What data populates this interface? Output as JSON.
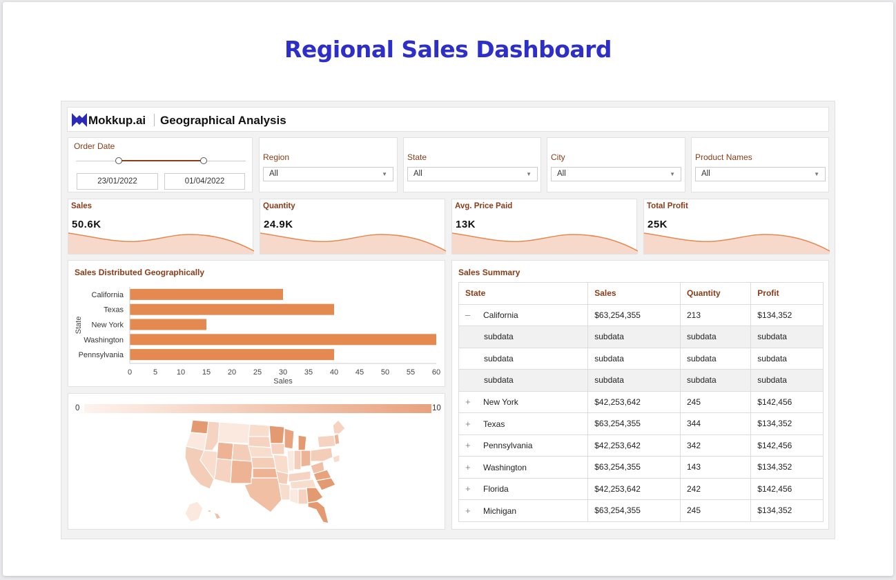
{
  "page_title": "Regional Sales Dashboard",
  "header": {
    "brand": "Mokkup.ai",
    "title": "Geographical Analysis"
  },
  "filters": {
    "order_date": {
      "label": "Order Date",
      "start": "23/01/2022",
      "end": "01/04/2022"
    },
    "region": {
      "label": "Region",
      "value": "All"
    },
    "state": {
      "label": "State",
      "value": "All"
    },
    "city": {
      "label": "City",
      "value": "All"
    },
    "product": {
      "label": "Product Names",
      "value": "All"
    }
  },
  "kpis": [
    {
      "label": "Sales",
      "value": "50.6K"
    },
    {
      "label": "Quantity",
      "value": "24.9K"
    },
    {
      "label": "Avg. Price Paid",
      "value": "13K"
    },
    {
      "label": "Total Profit",
      "value": "25K"
    }
  ],
  "bar_chart": {
    "title": "Sales Distributed Geographically",
    "xlabel": "Sales",
    "ylabel": "State",
    "color": "#e4894f",
    "xlim": [
      0,
      60
    ],
    "xticks": [
      "0",
      "5",
      "10",
      "15",
      "20",
      "25",
      "30",
      "35",
      "40",
      "45",
      "50",
      "55",
      "60"
    ]
  },
  "chart_data": {
    "type": "bar",
    "orientation": "horizontal",
    "categories": [
      "California",
      "Texas",
      "New York",
      "Washington",
      "Pennsylvania"
    ],
    "values": [
      30,
      40,
      15,
      60,
      40
    ],
    "title": "Sales Distributed Geographically",
    "xlabel": "Sales",
    "ylabel": "State",
    "xlim": [
      0,
      60
    ],
    "grid": false
  },
  "map": {
    "scale_min": "0",
    "scale_max": "10"
  },
  "summary": {
    "title": "Sales Summary",
    "columns": [
      "State",
      "Sales",
      "Quantity",
      "Profit"
    ],
    "rows": [
      {
        "toggle": "–",
        "state": "California",
        "sales": "$63,254,355",
        "qty": "213",
        "profit": "$134,352"
      },
      {
        "sub": true,
        "state": "subdata",
        "sales": "subdata",
        "qty": "subdata",
        "profit": "subdata"
      },
      {
        "sub": true,
        "state": "subdata",
        "sales": "subdata",
        "qty": "subdata",
        "profit": "subdata"
      },
      {
        "sub": true,
        "state": "subdata",
        "sales": "subdata",
        "qty": "subdata",
        "profit": "subdata"
      },
      {
        "toggle": "+",
        "state": "New York",
        "sales": "$42,253,642",
        "qty": "245",
        "profit": "$142,456"
      },
      {
        "toggle": "+",
        "state": "Texas",
        "sales": "$63,254,355",
        "qty": "344",
        "profit": "$134,352"
      },
      {
        "toggle": "+",
        "state": "Pennsylvania",
        "sales": "$42,253,642",
        "qty": "342",
        "profit": "$142,456"
      },
      {
        "toggle": "+",
        "state": "Washington",
        "sales": "$63,254,355",
        "qty": "143",
        "profit": "$134,352"
      },
      {
        "toggle": "+",
        "state": "Florida",
        "sales": "$42,253,642",
        "qty": "242",
        "profit": "$142,456"
      },
      {
        "toggle": "+",
        "state": "Michigan",
        "sales": "$63,254,355",
        "qty": "245",
        "profit": "$134,352"
      }
    ]
  }
}
